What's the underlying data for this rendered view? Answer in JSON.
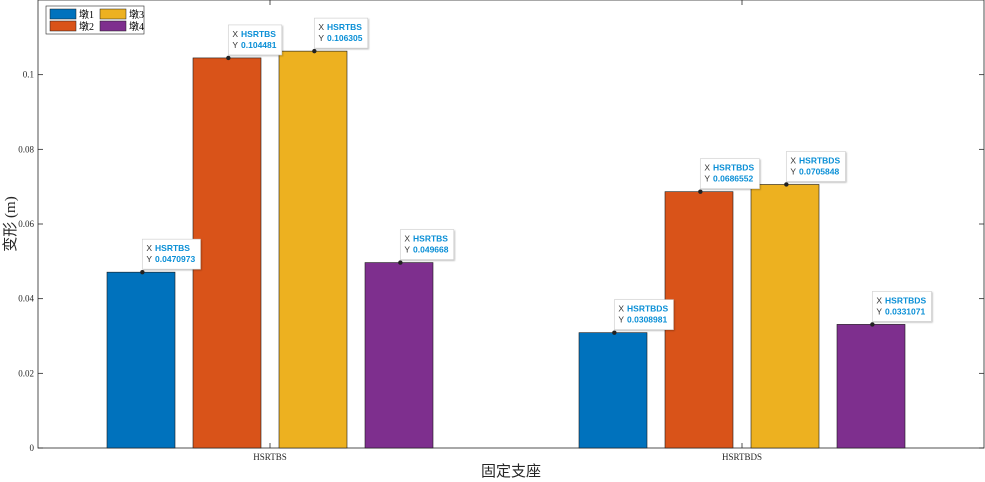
{
  "chart_data": {
    "type": "bar",
    "categories": [
      "HSRTBS",
      "HSRTBDS"
    ],
    "series": [
      {
        "name": "墩1",
        "color": "#0072BD",
        "values": [
          0.0470973,
          0.0308981
        ]
      },
      {
        "name": "墩2",
        "color": "#D95319",
        "values": [
          0.104481,
          0.0686552
        ]
      },
      {
        "name": "墩3",
        "color": "#EDB120",
        "values": [
          0.106305,
          0.0705848
        ]
      },
      {
        "name": "墩4",
        "color": "#7E2F8E",
        "values": [
          0.049668,
          0.0331071
        ]
      }
    ],
    "xlabel": "固定支座",
    "ylabel": "变形 (m)",
    "ylim": [
      0,
      0.12
    ],
    "yticks": [
      0,
      0.02,
      0.04,
      0.06,
      0.08,
      0.1
    ],
    "yticklabels": [
      "0",
      "0.02",
      "0.04",
      "0.06",
      "0.08",
      "0.1"
    ],
    "legend": {
      "placement": "top-left",
      "columns": 2
    },
    "grid": false,
    "datatips": {
      "x_prefix": "X",
      "y_prefix": "Y",
      "labels": [
        [
          "0.0470973",
          "0.0308981"
        ],
        [
          "0.104481",
          "0.0686552"
        ],
        [
          "0.106305",
          "0.0705848"
        ],
        [
          "0.049668",
          "0.0331071"
        ]
      ]
    }
  }
}
